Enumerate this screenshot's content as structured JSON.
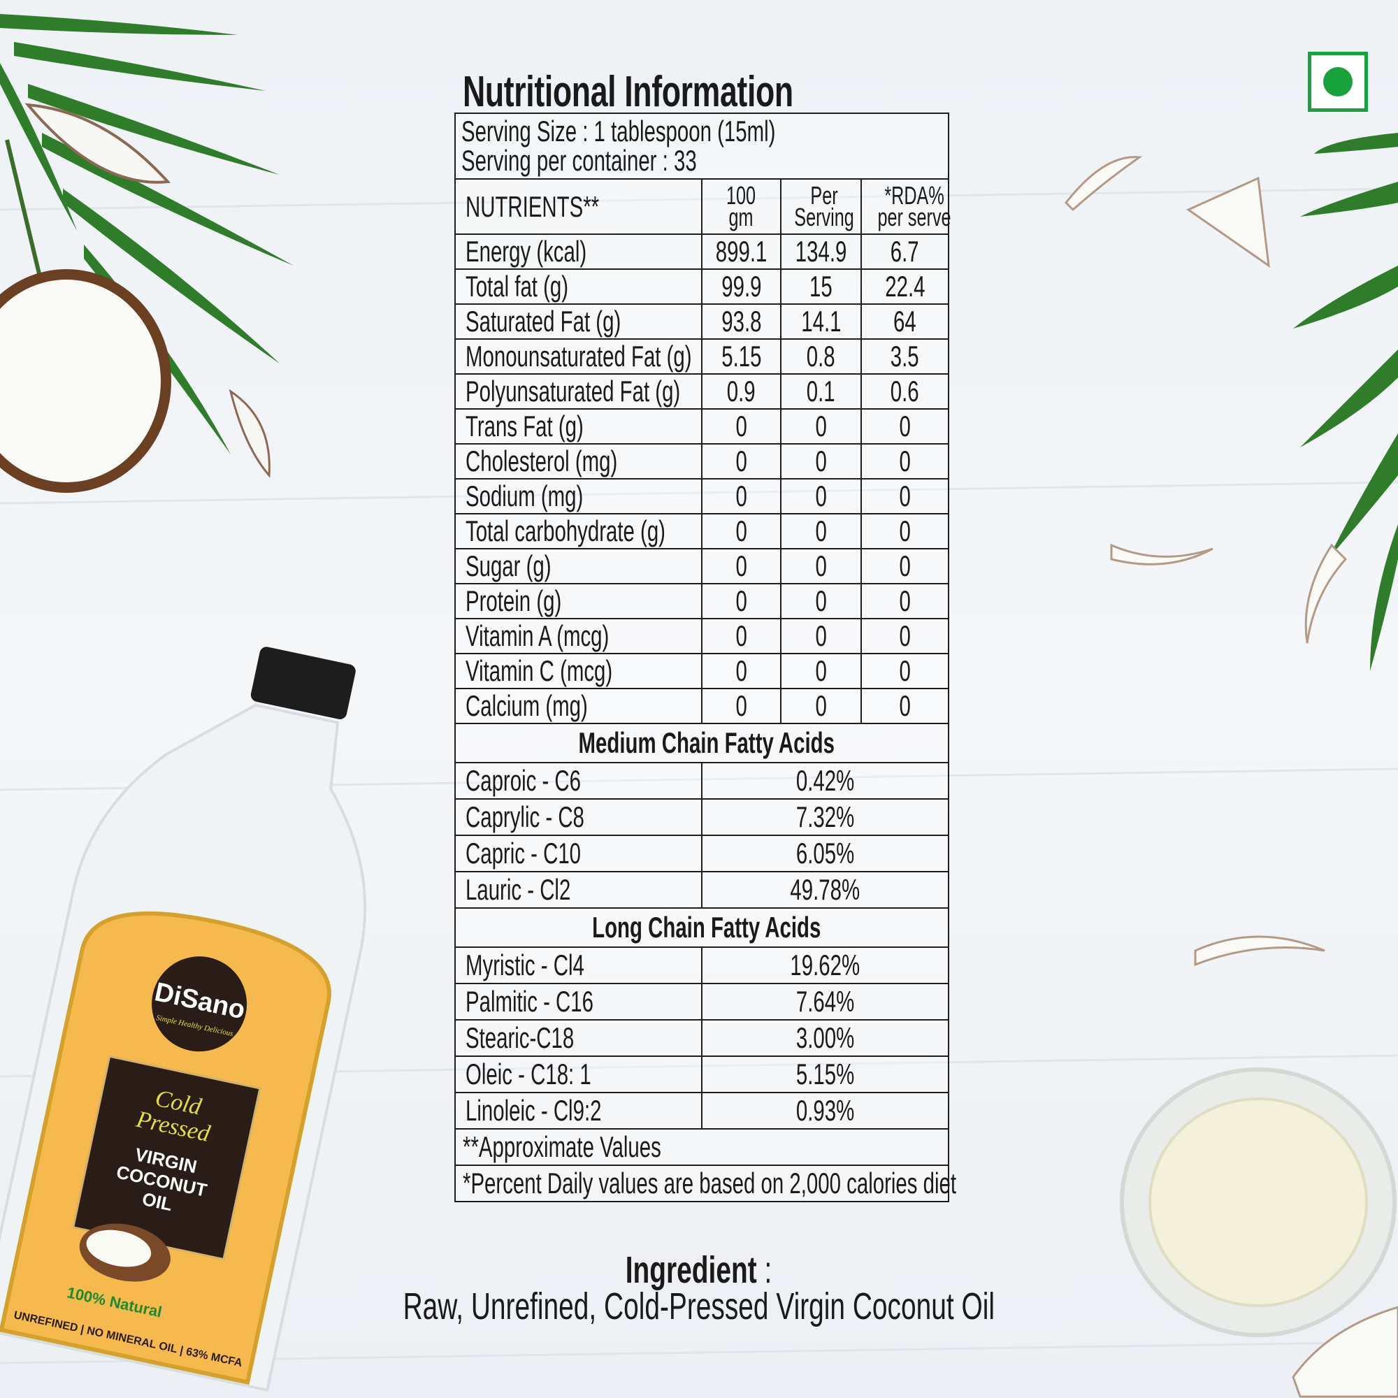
{
  "title": "Nutritional Information",
  "serving_size": "Serving Size : 1 tablespoon (15ml)",
  "serving_per_container": "Serving per container : 33",
  "headers": {
    "nutrients": "NUTRIENTS**",
    "per100_1": "100",
    "per100_2": "gm",
    "serving_1": "Per",
    "serving_2": "Serving",
    "rda_1": "*RDA%",
    "rda_2": "per serve"
  },
  "nutrients": [
    {
      "name": "Energy (kcal)",
      "per100": "899.1",
      "perServing": "134.9",
      "rda": "6.7"
    },
    {
      "name": "Total fat (g)",
      "per100": "99.9",
      "perServing": "15",
      "rda": "22.4"
    },
    {
      "name": "Saturated Fat (g)",
      "per100": "93.8",
      "perServing": "14.1",
      "rda": "64"
    },
    {
      "name": "Monounsaturated Fat (g)",
      "per100": "5.15",
      "perServing": "0.8",
      "rda": "3.5"
    },
    {
      "name": "Polyunsaturated Fat (g)",
      "per100": "0.9",
      "perServing": "0.1",
      "rda": "0.6"
    },
    {
      "name": "Trans Fat (g)",
      "per100": "0",
      "perServing": "0",
      "rda": "0"
    },
    {
      "name": "Cholesterol (mg)",
      "per100": "0",
      "perServing": "0",
      "rda": "0"
    },
    {
      "name": "Sodium (mg)",
      "per100": "0",
      "perServing": "0",
      "rda": "0"
    },
    {
      "name": "Total carbohydrate (g)",
      "per100": "0",
      "perServing": "0",
      "rda": "0"
    },
    {
      "name": "Sugar (g)",
      "per100": "0",
      "perServing": "0",
      "rda": "0"
    },
    {
      "name": "Protein (g)",
      "per100": "0",
      "perServing": "0",
      "rda": "0"
    },
    {
      "name": "Vitamin A (mcg)",
      "per100": "0",
      "perServing": "0",
      "rda": "0"
    },
    {
      "name": "Vitamin C (mcg)",
      "per100": "0",
      "perServing": "0",
      "rda": "0"
    },
    {
      "name": "Calcium (mg)",
      "per100": "0",
      "perServing": "0",
      "rda": "0"
    }
  ],
  "mcfa_title": "Medium Chain Fatty Acids",
  "mcfa": [
    {
      "name": "Caproic - C6",
      "value": "0.42%"
    },
    {
      "name": "Caprylic - C8",
      "value": "7.32%"
    },
    {
      "name": "Capric - C10",
      "value": "6.05%"
    },
    {
      "name": "Lauric - Cl2",
      "value": "49.78%"
    }
  ],
  "lcfa_title": "Long Chain Fatty Acids",
  "lcfa": [
    {
      "name": "Myristic - Cl4",
      "value": "19.62%"
    },
    {
      "name": "Palmitic - C16",
      "value": "7.64%"
    },
    {
      "name": "Stearic-C18",
      "value": "3.00%"
    },
    {
      "name": "Oleic - C18: 1",
      "value": "5.15%"
    },
    {
      "name": "Linoleic - Cl9:2",
      "value": "0.93%"
    }
  ],
  "approx_note": "**Approximate Values",
  "daily_note": "*Percent Daily values are based on 2,000 calories diet",
  "ingredient_label": "Ingredient",
  "ingredient_colon": " :",
  "ingredient_text": "Raw, Unrefined, Cold-Pressed Virgin Coconut Oil",
  "bottle": {
    "brand": "DiSano",
    "tagline": "Simple Healthy Delicious",
    "line1": "Cold",
    "line2": "Pressed",
    "product1": "VIRGIN",
    "product2": "COCONUT",
    "product3": "OIL",
    "badge": "100% Natural",
    "strip": "UNREFINED | NO MINERAL OIL | 63% MCFA"
  },
  "colors": {
    "veg_green": "#17a23c",
    "leaf_green": "#2f7d2a",
    "label_orange": "#f6b94e",
    "label_dark": "#2a1d17"
  },
  "icons": {
    "veg_mark": "veg-symbol-icon"
  }
}
